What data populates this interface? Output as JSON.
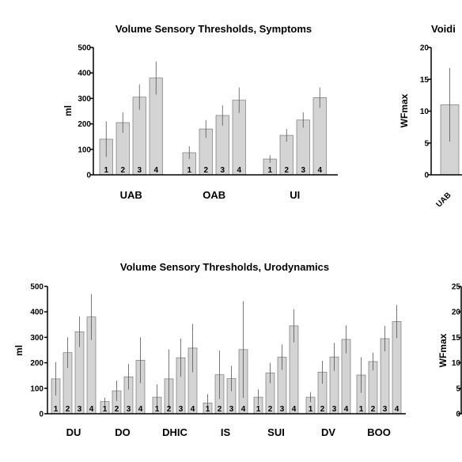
{
  "chart_data": [
    {
      "type": "bar",
      "title": "Volume Sensory Thresholds, Symptoms",
      "ylabel": "ml",
      "ylim": [
        0,
        500
      ],
      "yticks": [
        0,
        100,
        200,
        300,
        400,
        500
      ],
      "groups": [
        "UAB",
        "OAB",
        "UI"
      ],
      "bar_labels": [
        "1",
        "2",
        "3",
        "4"
      ],
      "values": [
        [
          140,
          205,
          305,
          380
        ],
        [
          87,
          180,
          233,
          293
        ],
        [
          62,
          155,
          215,
          303
        ]
      ],
      "errors": [
        [
          70,
          40,
          50,
          65
        ],
        [
          25,
          35,
          40,
          50
        ],
        [
          15,
          25,
          30,
          40
        ]
      ],
      "colors": {
        "bar": "#d4d4d4",
        "error": "#555555"
      }
    },
    {
      "type": "bar",
      "title": "Voidi",
      "ylabel": "WFmax",
      "ylim": [
        0,
        20
      ],
      "yticks": [
        0,
        5,
        10,
        15,
        20
      ],
      "categories": [
        "UAB"
      ],
      "values": [
        11
      ],
      "errors": [
        5.8
      ]
    },
    {
      "type": "bar",
      "title": "Volume Sensory Thresholds, Urodynamics",
      "ylabel": "ml",
      "ylim": [
        0,
        500
      ],
      "yticks": [
        0,
        100,
        200,
        300,
        400,
        500
      ],
      "groups": [
        "DU",
        "DO",
        "DHIC",
        "IS",
        "SUI",
        "DV",
        "BOO"
      ],
      "bar_labels": [
        "1",
        "2",
        "3",
        "4"
      ],
      "values": [
        [
          137,
          240,
          322,
          380
        ],
        [
          48,
          90,
          145,
          210
        ],
        [
          65,
          137,
          220,
          258
        ],
        [
          42,
          153,
          138,
          252
        ],
        [
          65,
          160,
          222,
          345
        ],
        [
          65,
          163,
          223,
          292
        ],
        [
          152,
          205,
          295,
          362
        ]
      ],
      "errors": [
        [
          65,
          60,
          60,
          90
        ],
        [
          15,
          40,
          50,
          90
        ],
        [
          50,
          115,
          75,
          95
        ],
        [
          35,
          95,
          50,
          190
        ],
        [
          30,
          40,
          50,
          65
        ],
        [
          20,
          45,
          55,
          55
        ],
        [
          70,
          35,
          50,
          65
        ]
      ],
      "colors": {
        "bar": "#d4d4d4",
        "error": "#555555"
      }
    },
    {
      "type": "bar",
      "title": "",
      "ylabel": "WFmax",
      "ylim": [
        0,
        25
      ],
      "yticks": [
        0,
        5,
        10,
        15,
        20,
        25
      ]
    }
  ]
}
